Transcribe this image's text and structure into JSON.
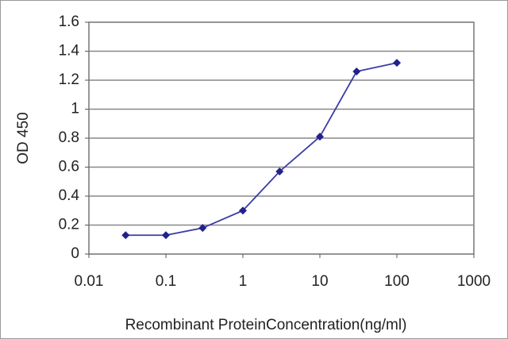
{
  "chart_data": {
    "type": "line",
    "x_label": "Recombinant ProteinConcentration(ng/ml)",
    "y_label": "OD 450",
    "x": [
      0.03,
      0.1,
      0.3,
      1,
      3,
      10,
      30,
      100
    ],
    "series": [
      {
        "color": "#3a3aa8",
        "values": [
          0.13,
          0.13,
          0.18,
          0.3,
          0.57,
          0.81,
          1.26,
          1.32
        ]
      }
    ],
    "xscale": "log",
    "xlim": [
      0.01,
      1000
    ],
    "xticks": [
      0.01,
      0.1,
      1,
      10,
      100,
      1000
    ],
    "ylim": [
      0,
      1.6
    ],
    "yticks": [
      0,
      0.2,
      0.4,
      0.6,
      0.8,
      1,
      1.2,
      1.4,
      1.6
    ],
    "grid": true
  }
}
